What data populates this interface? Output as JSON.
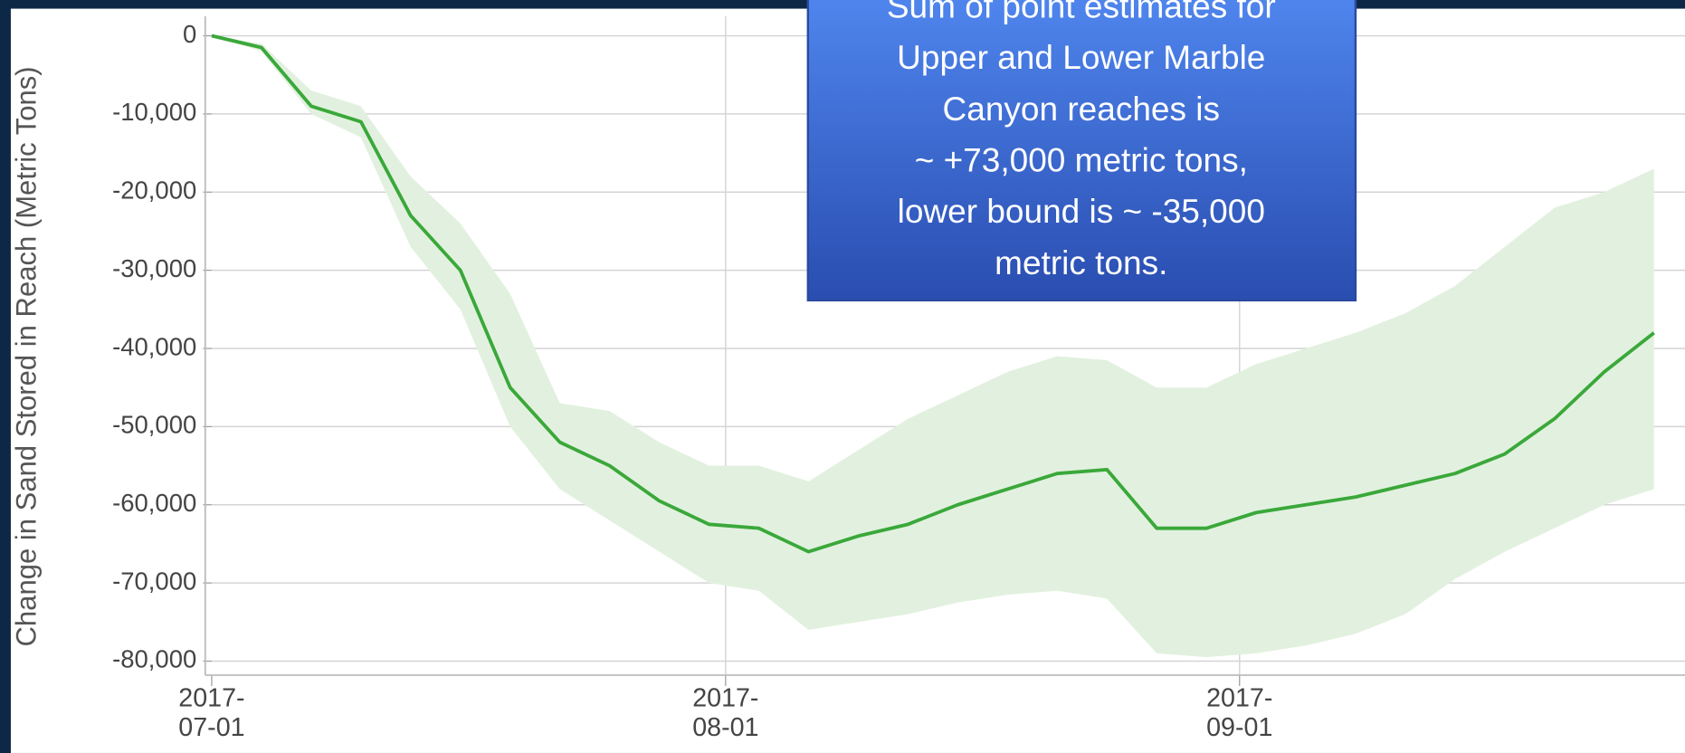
{
  "chart_data": {
    "type": "line",
    "ylabel": "Change in Sand Stored in Reach (Metric Tons)",
    "annotation": [
      "Sum of point estimates for",
      "Upper and Lower Marble",
      "Canyon reaches is",
      "~ +73,000 metric tons,",
      "lower bound is ~ -35,000",
      "metric tons."
    ],
    "x": [
      "2017-07-01",
      "2017-07-04",
      "2017-07-07",
      "2017-07-10",
      "2017-07-13",
      "2017-07-16",
      "2017-07-19",
      "2017-07-22",
      "2017-07-25",
      "2017-07-28",
      "2017-07-31",
      "2017-08-03",
      "2017-08-06",
      "2017-08-09",
      "2017-08-12",
      "2017-08-15",
      "2017-08-18",
      "2017-08-21",
      "2017-08-24",
      "2017-08-27",
      "2017-08-30",
      "2017-09-02",
      "2017-09-05",
      "2017-09-08",
      "2017-09-11",
      "2017-09-14",
      "2017-09-17",
      "2017-09-20",
      "2017-09-23",
      "2017-09-26"
    ],
    "values": [
      0,
      -1500,
      -9000,
      -11000,
      -23000,
      -30000,
      -45000,
      -52000,
      -55000,
      -59500,
      -62500,
      -63000,
      -66000,
      -64000,
      -62500,
      -60000,
      -58000,
      -56000,
      -55500,
      -63000,
      -63000,
      -61000,
      -60000,
      -59000,
      -57500,
      -56000,
      -53500,
      -49000,
      -43000,
      -38000
    ],
    "upper": [
      0,
      -1000,
      -7000,
      -9000,
      -18000,
      -24000,
      -33000,
      -47000,
      -48000,
      -52000,
      -55000,
      -55000,
      -57000,
      -53000,
      -49000,
      -46000,
      -43000,
      -41000,
      -41500,
      -45000,
      -45000,
      -42000,
      -40000,
      -38000,
      -35500,
      -32000,
      -27000,
      -22000,
      -20000,
      -17000
    ],
    "lower": [
      0,
      -2000,
      -10000,
      -13000,
      -27000,
      -35000,
      -50000,
      -58000,
      -62000,
      -66000,
      -70000,
      -71000,
      -76000,
      -75000,
      -74000,
      -72500,
      -71500,
      -71000,
      -72000,
      -79000,
      -79500,
      -79000,
      -78000,
      -76500,
      -74000,
      -69500,
      -66000,
      -63000,
      -60000,
      -58000
    ],
    "color": "#3aa83a",
    "band_color": "#e2f1df",
    "xlim": [
      "2017-07-01",
      "2017-09-28"
    ],
    "xticks": [
      "2017-07-01",
      "2017-08-01",
      "2017-09-01"
    ],
    "ylim": [
      -81800,
      2500
    ],
    "yticks": [
      0,
      {
        "value": -10000,
        "label": "-10,000"
      },
      {
        "value": -20000,
        "label": "-20,000"
      },
      {
        "value": -30000,
        "label": "-30,000"
      },
      {
        "value": -40000,
        "label": "-40,000"
      },
      {
        "value": -50000,
        "label": "-50,000"
      },
      {
        "value": -60000,
        "label": "-60,000"
      },
      {
        "value": -70000,
        "label": "-70,000"
      },
      {
        "value": -80000,
        "label": "-80,000"
      }
    ],
    "grid": true
  }
}
